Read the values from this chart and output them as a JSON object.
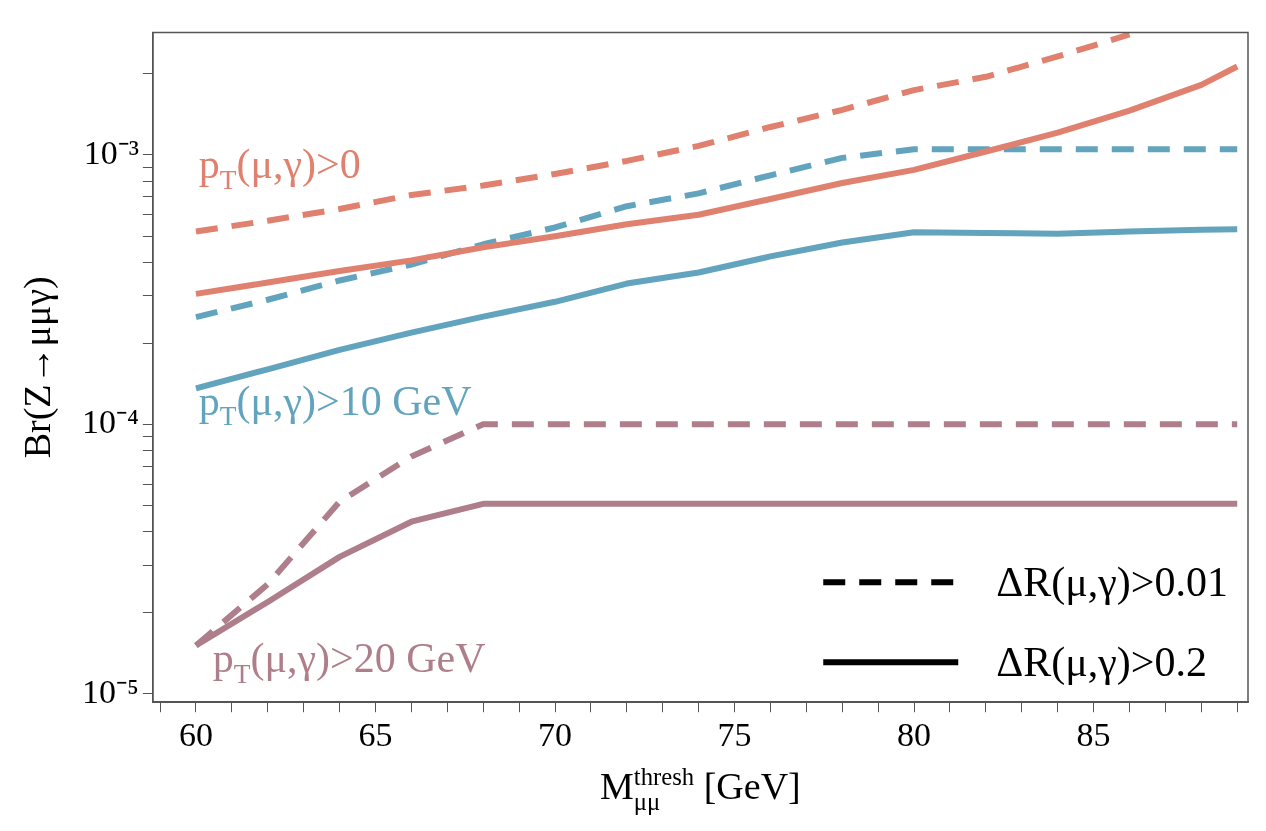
{
  "chart_data": {
    "type": "line",
    "xlabel": "M$^{thresh}$$_{μμ}$ [GeV]",
    "ylabel": "Br(Z→μμγ)",
    "log": "y",
    "grid": false,
    "marker": "none",
    "xlim": [
      58.8,
      89.3
    ],
    "ylim": [
      9.3e-06,
      0.00285
    ],
    "xticks": [
      {
        "value": 59,
        "label": null
      },
      60,
      {
        "value": 61,
        "label": null
      },
      {
        "value": 62,
        "label": null
      },
      {
        "value": 63,
        "label": null
      },
      {
        "value": 64,
        "label": null
      },
      65,
      {
        "value": 66,
        "label": null
      },
      {
        "value": 67,
        "label": null
      },
      {
        "value": 68,
        "label": null
      },
      {
        "value": 69,
        "label": null
      },
      70,
      {
        "value": 71,
        "label": null
      },
      {
        "value": 72,
        "label": null
      },
      {
        "value": 73,
        "label": null
      },
      {
        "value": 74,
        "label": null
      },
      75,
      {
        "value": 76,
        "label": null
      },
      {
        "value": 77,
        "label": null
      },
      {
        "value": 78,
        "label": null
      },
      {
        "value": 79,
        "label": null
      },
      80,
      {
        "value": 81,
        "label": null
      },
      {
        "value": 82,
        "label": null
      },
      {
        "value": 83,
        "label": null
      },
      {
        "value": 84,
        "label": null
      },
      85,
      {
        "value": 86,
        "label": null
      },
      {
        "value": 87,
        "label": null
      },
      {
        "value": 88,
        "label": null
      },
      {
        "value": 89,
        "label": null
      }
    ],
    "yticks": [
      {
        "value": 1e-05,
        "label": "10⁻⁵"
      },
      {
        "value": 2e-05,
        "label": null
      },
      {
        "value": 3e-05,
        "label": null
      },
      {
        "value": 4e-05,
        "label": null
      },
      {
        "value": 5e-05,
        "label": null
      },
      {
        "value": 6e-05,
        "label": null
      },
      {
        "value": 7e-05,
        "label": null
      },
      {
        "value": 8e-05,
        "label": null
      },
      {
        "value": 9e-05,
        "label": null
      },
      {
        "value": 0.0001,
        "label": "10⁻⁴"
      },
      {
        "value": 0.0002,
        "label": null
      },
      {
        "value": 0.0003,
        "label": null
      },
      {
        "value": 0.0004,
        "label": null
      },
      {
        "value": 0.0005,
        "label": null
      },
      {
        "value": 0.0006,
        "label": null
      },
      {
        "value": 0.0007,
        "label": null
      },
      {
        "value": 0.0008,
        "label": null
      },
      {
        "value": 0.0009,
        "label": null
      },
      {
        "value": 0.001,
        "label": "10⁻³"
      },
      {
        "value": 0.002,
        "label": null
      }
    ],
    "series": [
      {
        "color": "#e0806e",
        "line_style": "dashed",
        "x": [
          60,
          62,
          64,
          66,
          68,
          70,
          72,
          74,
          76,
          78,
          80,
          82,
          84,
          86
        ],
        "values": [
          0.00052,
          0.00057,
          0.00063,
          0.00071,
          0.00077,
          0.00085,
          0.00095,
          0.00108,
          0.00127,
          0.00147,
          0.00174,
          0.00195,
          0.00232,
          0.0028
        ]
      },
      {
        "color": "#e0806e",
        "line_style": "solid",
        "x": [
          60,
          62,
          64,
          66,
          68,
          70,
          72,
          74,
          76,
          78,
          80,
          82,
          84,
          86,
          88,
          89
        ],
        "values": [
          0.000305,
          0.000336,
          0.000371,
          0.000406,
          0.000454,
          0.000499,
          0.000553,
          0.0006,
          0.000686,
          0.000787,
          0.00088,
          0.00103,
          0.00121,
          0.00146,
          0.00182,
          0.00213
        ]
      },
      {
        "color": "#62a4bd",
        "line_style": "dashed",
        "x": [
          60,
          62,
          64,
          66,
          68,
          70,
          72,
          74,
          76,
          78,
          80,
          89
        ],
        "values": [
          0.00025,
          0.00029,
          0.000342,
          0.000392,
          0.000466,
          0.000538,
          0.000645,
          0.00072,
          0.00084,
          0.000975,
          0.00105,
          0.00105
        ]
      },
      {
        "color": "#62a4bd",
        "line_style": "solid",
        "x": [
          60,
          62,
          64,
          66,
          68,
          70,
          72,
          74,
          76,
          78,
          80,
          82,
          84,
          86,
          88,
          89
        ],
        "values": [
          0.000136,
          0.00016,
          0.000189,
          0.000219,
          0.000251,
          0.000285,
          0.000333,
          0.000366,
          0.00042,
          0.000473,
          0.000516,
          0.000513,
          0.00051,
          0.00052,
          0.000527,
          0.00053
        ]
      },
      {
        "color": "#ae7f8a",
        "line_style": "dashed",
        "x": [
          60,
          62,
          64,
          66,
          68,
          89
        ],
        "values": [
          1.51e-05,
          2.55e-05,
          5.16e-05,
          7.6e-05,
          0.0001,
          0.0001
        ]
      },
      {
        "color": "#ae7f8a",
        "line_style": "solid",
        "x": [
          60,
          62,
          64,
          66,
          68,
          89
        ],
        "values": [
          1.51e-05,
          2.19e-05,
          3.22e-05,
          4.35e-05,
          5.07e-05,
          5.07e-05
        ]
      }
    ],
    "annotations": [
      "p$_{T}$(μ,γ)>0",
      "p$_{T}$(μ,γ)>10 GeV",
      "p$_{T}$(μ,γ)>20 GeV",
      "ΔR(μ,γ)>0.01",
      "ΔR(μ,γ)>0.2"
    ]
  }
}
